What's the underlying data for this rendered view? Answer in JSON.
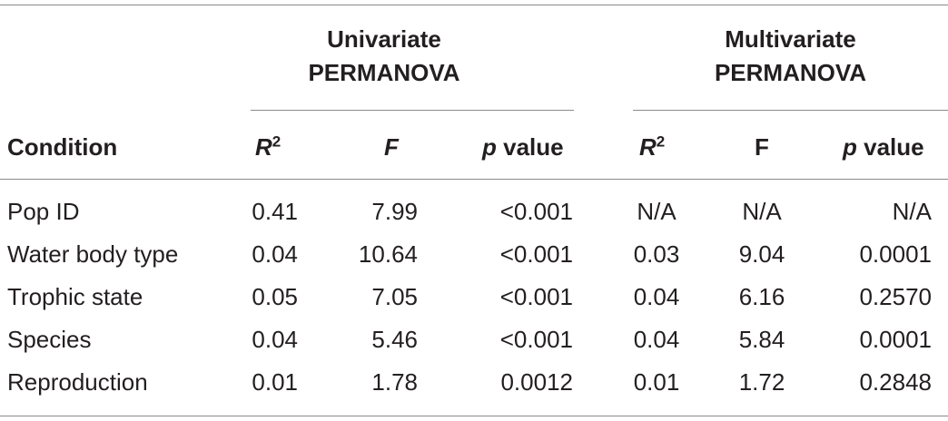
{
  "group_headers": {
    "univariate_line1": "Univariate",
    "univariate_line2": "PERMANOVA",
    "multivariate_line1": "Multivariate",
    "multivariate_line2": "PERMANOVA"
  },
  "column_headers": {
    "condition": "Condition",
    "uni_r": "R",
    "uni_r_sup": "2",
    "uni_f": "F",
    "uni_p_italic": "p",
    "uni_p_rest": " value",
    "multi_r": "R",
    "multi_r_sup": "2",
    "multi_f": "F",
    "multi_p_italic": "p",
    "multi_p_rest": " value"
  },
  "rows": [
    {
      "condition": "Pop ID",
      "uni_r2": "0.41",
      "uni_f": "7.99",
      "uni_p": "<0.001",
      "multi_r2": "N/A",
      "multi_f": "N/A",
      "multi_p": "N/A"
    },
    {
      "condition": "Water body type",
      "uni_r2": "0.04",
      "uni_f": "10.64",
      "uni_p": "<0.001",
      "multi_r2": "0.03",
      "multi_f": "9.04",
      "multi_p": "0.0001"
    },
    {
      "condition": "Trophic state",
      "uni_r2": "0.05",
      "uni_f": "7.05",
      "uni_p": "<0.001",
      "multi_r2": "0.04",
      "multi_f": "6.16",
      "multi_p": "0.2570"
    },
    {
      "condition": "Species",
      "uni_r2": "0.04",
      "uni_f": "5.46",
      "uni_p": "<0.001",
      "multi_r2": "0.04",
      "multi_f": "5.84",
      "multi_p": "0.0001"
    },
    {
      "condition": "Reproduction",
      "uni_r2": "0.01",
      "uni_f": "1.78",
      "uni_p": "0.0012",
      "multi_r2": "0.01",
      "multi_f": "1.72",
      "multi_p": "0.2848"
    }
  ]
}
